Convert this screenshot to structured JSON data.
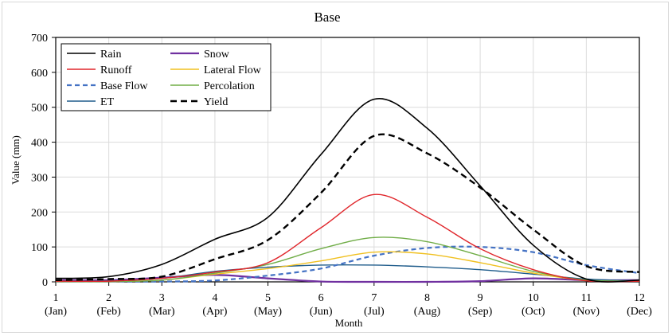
{
  "chart_data": {
    "type": "line",
    "title": "Base",
    "xlabel": "Month",
    "ylabel": "Value (mm)",
    "xlim": [
      1,
      12
    ],
    "ylim": [
      0,
      700
    ],
    "yticks": [
      0,
      100,
      200,
      300,
      400,
      500,
      600,
      700
    ],
    "xticks": [
      {
        "value": 1,
        "num": "1",
        "mon": "(Jan)"
      },
      {
        "value": 2,
        "num": "2",
        "mon": "(Feb)"
      },
      {
        "value": 3,
        "num": "3",
        "mon": "(Mar)"
      },
      {
        "value": 4,
        "num": "4",
        "mon": "(Apr)"
      },
      {
        "value": 5,
        "num": "5",
        "mon": "(May)"
      },
      {
        "value": 6,
        "num": "6",
        "mon": "(Jun)"
      },
      {
        "value": 7,
        "num": "7",
        "mon": "(Jul)"
      },
      {
        "value": 8,
        "num": "8",
        "mon": "(Aug)"
      },
      {
        "value": 9,
        "num": "9",
        "mon": "(Sep)"
      },
      {
        "value": 10,
        "num": "10",
        "mon": "(Oct)"
      },
      {
        "value": 11,
        "num": "11",
        "mon": "(Nov)"
      },
      {
        "value": 12,
        "num": "12",
        "mon": "(Dec)"
      }
    ],
    "grid": true,
    "legend_position": "top-left",
    "x": [
      1,
      2,
      3,
      4,
      5,
      6,
      7,
      8,
      9,
      10,
      11,
      12
    ],
    "series": [
      {
        "name": "Rain",
        "color": "#000000",
        "dash": "solid",
        "width": 1.6,
        "values": [
          10,
          15,
          50,
          122,
          185,
          365,
          523,
          440,
          275,
          105,
          8,
          5
        ]
      },
      {
        "name": "Snow",
        "color": "#7030a0",
        "dash": "solid",
        "width": 2.2,
        "values": [
          5,
          5,
          12,
          20,
          10,
          1,
          0,
          0,
          2,
          10,
          5,
          5
        ]
      },
      {
        "name": "Runoff",
        "color": "#e0262b",
        "dash": "solid",
        "width": 1.4,
        "values": [
          2,
          2,
          10,
          28,
          55,
          155,
          250,
          185,
          95,
          35,
          3,
          2
        ]
      },
      {
        "name": "Lateral Flow",
        "color": "#f0c020",
        "dash": "solid",
        "width": 1.4,
        "values": [
          1,
          1,
          5,
          22,
          38,
          60,
          85,
          80,
          55,
          25,
          4,
          2
        ]
      },
      {
        "name": "Base Flow",
        "color": "#4472c4",
        "dash": "dashed",
        "width": 2.2,
        "values": [
          1,
          1,
          1,
          4,
          18,
          38,
          75,
          97,
          100,
          85,
          48,
          25
        ]
      },
      {
        "name": "Percolation",
        "color": "#70ad47",
        "dash": "solid",
        "width": 1.4,
        "values": [
          1,
          1,
          5,
          25,
          50,
          95,
          127,
          115,
          75,
          30,
          5,
          3
        ]
      },
      {
        "name": "ET",
        "color": "#1f5c8b",
        "dash": "solid",
        "width": 1.4,
        "values": [
          2,
          3,
          10,
          30,
          42,
          48,
          48,
          43,
          35,
          22,
          8,
          3
        ]
      },
      {
        "name": "Yield",
        "color": "#000000",
        "dash": "dashed",
        "width": 2.4,
        "values": [
          5,
          8,
          15,
          65,
          120,
          255,
          418,
          368,
          270,
          150,
          45,
          28
        ]
      }
    ]
  }
}
